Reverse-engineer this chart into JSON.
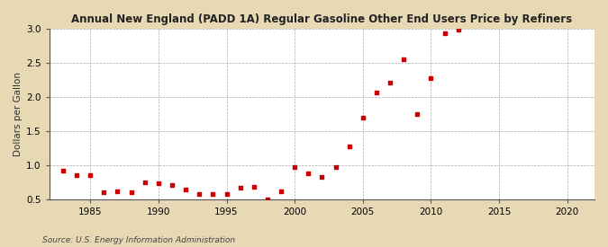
{
  "title": "Annual New England (PADD 1A) Regular Gasoline Other End Users Price by Refiners",
  "ylabel": "Dollars per Gallon",
  "source": "Source: U.S. Energy Information Administration",
  "figure_bg": "#e8d9b5",
  "plot_bg": "#ffffff",
  "marker_color": "#cc0000",
  "xlim": [
    1982,
    2022
  ],
  "ylim": [
    0.5,
    3.0
  ],
  "xticks": [
    1985,
    1990,
    1995,
    2000,
    2005,
    2010,
    2015,
    2020
  ],
  "yticks": [
    0.5,
    1.0,
    1.5,
    2.0,
    2.5,
    3.0
  ],
  "data": {
    "years": [
      1983,
      1984,
      1985,
      1986,
      1987,
      1988,
      1989,
      1990,
      1991,
      1992,
      1993,
      1994,
      1995,
      1996,
      1997,
      1998,
      1999,
      2000,
      2001,
      2002,
      2003,
      2004,
      2005,
      2006,
      2007,
      2008,
      2009,
      2010,
      2011,
      2012
    ],
    "values": [
      0.92,
      0.85,
      0.85,
      0.6,
      0.61,
      0.6,
      0.75,
      0.73,
      0.71,
      0.64,
      0.57,
      0.58,
      0.58,
      0.67,
      0.68,
      0.5,
      0.62,
      0.97,
      0.88,
      0.82,
      0.97,
      1.27,
      1.7,
      2.06,
      2.21,
      2.55,
      1.75,
      2.27,
      2.93,
      2.98
    ]
  }
}
